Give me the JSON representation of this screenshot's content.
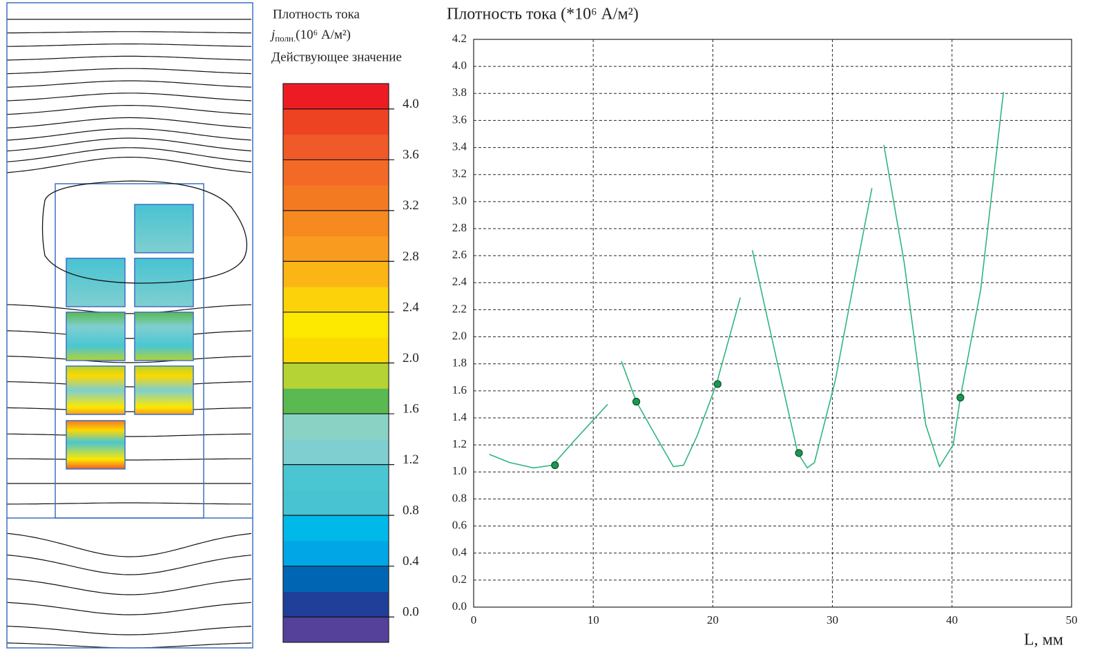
{
  "scale_bar": {
    "title": "Плотность тока",
    "quantity": "j",
    "quantity_sub": "полн.",
    "units": "(10⁶ А/м²)",
    "subtitle": "Действующее значение",
    "range": [
      -0.2,
      4.2
    ],
    "bands": [
      "#55409a",
      "#1f3f98",
      "#0066b3",
      "#00a6e6",
      "#00b9e8",
      "#48c3d2",
      "#4ac6d3",
      "#7fcfd0",
      "#8ad3c4",
      "#5ab951",
      "#b5d334",
      "#fcd900",
      "#fde800",
      "#fcd20a",
      "#fbb515",
      "#f99b1f",
      "#f6891f",
      "#f47a22",
      "#f26a25",
      "#f05a28",
      "#ee4323",
      "#ed1c24"
    ],
    "ticks": [
      {
        "value": 4.0,
        "label": "4.0"
      },
      3.6,
      3.2,
      2.8,
      2.4,
      {
        "value": 2.0,
        "label": "2.0"
      },
      1.6,
      1.2,
      0.8,
      0.4,
      {
        "value": 0.0,
        "label": "0.0"
      }
    ]
  },
  "chart_data": {
    "type": "line",
    "title": "Плотность тока (*10⁶ А/м²)",
    "xlabel": "L, мм",
    "xlim": [
      0,
      50
    ],
    "xticks": [
      0,
      10,
      20,
      30,
      40,
      50
    ],
    "ylim": [
      0,
      4.2
    ],
    "yticks": [
      {
        "value": 0.0,
        "label": "0.0"
      },
      0.2,
      0.4,
      0.6,
      0.8,
      {
        "value": 1.0,
        "label": "1.0"
      },
      1.2,
      1.4,
      1.6,
      1.8,
      {
        "value": 2.0,
        "label": "2.0"
      },
      2.2,
      2.4,
      2.6,
      2.8,
      {
        "value": 3.0,
        "label": "3.0"
      },
      3.2,
      3.4,
      3.6,
      3.8,
      {
        "value": 4.0,
        "label": "4.0"
      },
      4.2
    ],
    "grid": true,
    "series": [
      {
        "color": "#2fb57c",
        "x": [
          1.3,
          3.0,
          5.0,
          6.6,
          8.3,
          11.2,
          null,
          12.35,
          13.6,
          15.2,
          16.7,
          17.55,
          18.7,
          20.3,
          22.3,
          null,
          23.3,
          25.06,
          27.1,
          27.9,
          28.5,
          30.25,
          32.0,
          33.3,
          null,
          34.3,
          36.0,
          37.8,
          38.95,
          40.1,
          40.7,
          42.4,
          44.3
        ],
        "values": [
          1.13,
          1.07,
          1.03,
          1.05,
          1.22,
          1.5,
          null,
          1.82,
          1.52,
          1.27,
          1.04,
          1.05,
          1.27,
          1.65,
          2.29,
          null,
          2.64,
          1.94,
          1.14,
          1.03,
          1.07,
          1.68,
          2.5,
          3.1,
          null,
          3.42,
          2.55,
          1.35,
          1.04,
          1.2,
          1.55,
          2.35,
          3.81
        ]
      },
      {
        "color": "#1a9850",
        "marker": "circle",
        "x": [
          6.8,
          13.6,
          20.4,
          27.2,
          40.7
        ],
        "values": [
          1.05,
          1.52,
          1.65,
          1.14,
          1.55
        ]
      }
    ]
  }
}
